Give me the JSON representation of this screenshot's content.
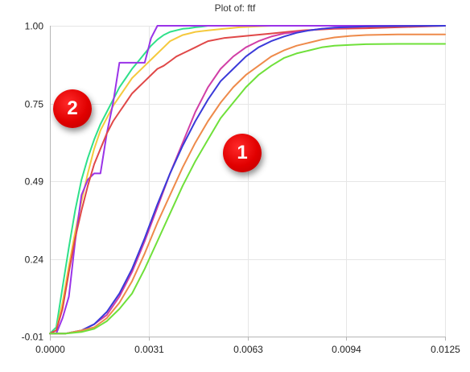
{
  "chart_data": {
    "type": "line",
    "title": "Plot of: ftf",
    "xlabel": "",
    "ylabel": "",
    "xlim": [
      0,
      0.0125
    ],
    "ylim": [
      -0.01,
      1.0
    ],
    "x_ticks": [
      "0.0000",
      "0.0031",
      "0.0063",
      "0.0094",
      "0.0125"
    ],
    "x_tick_values": [
      0,
      0.003125,
      0.00625,
      0.009375,
      0.0125
    ],
    "y_ticks": [
      "-0.01",
      "0.24",
      "0.49",
      "0.75",
      "1.00"
    ],
    "y_tick_values": [
      -0.01,
      0.2425,
      0.495,
      0.7475,
      1.0
    ],
    "grid": true,
    "legend": "none",
    "annotations": [
      {
        "label": "1",
        "x": 0.006,
        "y": 0.56
      },
      {
        "label": "2",
        "x": 0.0008,
        "y": 0.73
      }
    ],
    "series": [
      {
        "color": "#2ee08a",
        "x": [
          0,
          0.0002,
          0.0004,
          0.0006,
          0.0008,
          0.001,
          0.0012,
          0.0014,
          0.0016,
          0.0018,
          0.002,
          0.0022,
          0.0024,
          0.0026,
          0.0028,
          0.003,
          0.0032,
          0.0034,
          0.0036,
          0.0038,
          0.004,
          0.0042,
          0.0044,
          0.0046,
          0.0048,
          0.005,
          0.0125
        ],
        "y": [
          0.0,
          0.02,
          0.15,
          0.28,
          0.4,
          0.5,
          0.57,
          0.63,
          0.68,
          0.72,
          0.76,
          0.8,
          0.83,
          0.86,
          0.885,
          0.91,
          0.935,
          0.955,
          0.97,
          0.98,
          0.985,
          0.99,
          0.992,
          0.995,
          0.997,
          1.0,
          1.0
        ]
      },
      {
        "color": "#f5c93d",
        "x": [
          0,
          0.0002,
          0.0004,
          0.0006,
          0.0008,
          0.001,
          0.0012,
          0.0014,
          0.0016,
          0.0018,
          0.002,
          0.0022,
          0.0024,
          0.0026,
          0.0028,
          0.003,
          0.0032,
          0.0034,
          0.0036,
          0.0038,
          0.004,
          0.0042,
          0.0044,
          0.0046,
          0.005,
          0.0055,
          0.006,
          0.007,
          0.0125
        ],
        "y": [
          0.0,
          0.01,
          0.1,
          0.22,
          0.33,
          0.43,
          0.52,
          0.6,
          0.66,
          0.7,
          0.74,
          0.77,
          0.8,
          0.83,
          0.85,
          0.87,
          0.89,
          0.91,
          0.93,
          0.95,
          0.96,
          0.97,
          0.975,
          0.98,
          0.985,
          0.99,
          0.995,
          1.0,
          1.0
        ]
      },
      {
        "color": "#9a33e8",
        "x": [
          0,
          0.0002,
          0.0004,
          0.0006,
          0.0008,
          0.001,
          0.0012,
          0.0014,
          0.0016,
          0.0018,
          0.002,
          0.0022,
          0.0024,
          0.0026,
          0.0028,
          0.003,
          0.0032,
          0.0034,
          0.0036,
          0.0125
        ],
        "y": [
          0.0,
          0.0,
          0.05,
          0.12,
          0.3,
          0.45,
          0.5,
          0.52,
          0.52,
          0.65,
          0.75,
          0.88,
          0.88,
          0.88,
          0.88,
          0.88,
          0.96,
          1.0,
          1.0,
          1.0
        ]
      },
      {
        "color": "#e04848",
        "x": [
          0,
          0.0002,
          0.0004,
          0.0006,
          0.0008,
          0.001,
          0.0012,
          0.0014,
          0.0016,
          0.0018,
          0.002,
          0.0022,
          0.0024,
          0.0026,
          0.0028,
          0.003,
          0.0032,
          0.0034,
          0.0036,
          0.0038,
          0.004,
          0.0042,
          0.0044,
          0.0046,
          0.0048,
          0.005,
          0.0055,
          0.006,
          0.0065,
          0.007,
          0.0075,
          0.008,
          0.009,
          0.01,
          0.011,
          0.0125
        ],
        "y": [
          0.0,
          0.01,
          0.08,
          0.2,
          0.31,
          0.4,
          0.48,
          0.55,
          0.6,
          0.65,
          0.69,
          0.72,
          0.75,
          0.78,
          0.8,
          0.82,
          0.84,
          0.86,
          0.87,
          0.885,
          0.9,
          0.91,
          0.92,
          0.93,
          0.94,
          0.95,
          0.96,
          0.965,
          0.97,
          0.975,
          0.98,
          0.985,
          0.99,
          0.992,
          0.995,
          1.0
        ]
      },
      {
        "color": "#d13fa6",
        "x": [
          0,
          0.0005,
          0.001,
          0.0014,
          0.0018,
          0.0022,
          0.0026,
          0.003,
          0.0034,
          0.0038,
          0.0042,
          0.0046,
          0.005,
          0.0054,
          0.0058,
          0.0062,
          0.0066,
          0.007,
          0.0074,
          0.0078,
          0.0082,
          0.0086,
          0.009,
          0.0095,
          0.01,
          0.011,
          0.0125
        ],
        "y": [
          0.0,
          0.0,
          0.01,
          0.03,
          0.06,
          0.12,
          0.2,
          0.3,
          0.41,
          0.52,
          0.62,
          0.72,
          0.8,
          0.86,
          0.9,
          0.93,
          0.95,
          0.965,
          0.975,
          0.98,
          0.985,
          0.99,
          0.993,
          0.995,
          0.997,
          0.999,
          1.0
        ]
      },
      {
        "color": "#3a3ad9",
        "x": [
          0,
          0.0005,
          0.001,
          0.0014,
          0.0018,
          0.0022,
          0.0026,
          0.003,
          0.0034,
          0.0038,
          0.0042,
          0.0046,
          0.005,
          0.0054,
          0.0058,
          0.0062,
          0.0066,
          0.007,
          0.0074,
          0.0078,
          0.0082,
          0.0086,
          0.009,
          0.0095,
          0.01,
          0.011,
          0.0125
        ],
        "y": [
          0.0,
          0.0,
          0.01,
          0.03,
          0.07,
          0.13,
          0.21,
          0.31,
          0.42,
          0.52,
          0.61,
          0.69,
          0.76,
          0.82,
          0.86,
          0.9,
          0.93,
          0.95,
          0.965,
          0.977,
          0.985,
          0.99,
          0.994,
          0.996,
          0.998,
          0.999,
          1.0
        ]
      },
      {
        "color": "#ee8a4a",
        "x": [
          0,
          0.0005,
          0.001,
          0.0014,
          0.0018,
          0.0022,
          0.0026,
          0.003,
          0.0034,
          0.0038,
          0.0042,
          0.0046,
          0.005,
          0.0054,
          0.0058,
          0.0062,
          0.0066,
          0.007,
          0.0074,
          0.0078,
          0.0082,
          0.0086,
          0.009,
          0.0095,
          0.01,
          0.011,
          0.0125
        ],
        "y": [
          0.0,
          0.0,
          0.01,
          0.02,
          0.05,
          0.1,
          0.17,
          0.26,
          0.36,
          0.45,
          0.54,
          0.62,
          0.69,
          0.75,
          0.8,
          0.84,
          0.87,
          0.9,
          0.92,
          0.935,
          0.945,
          0.955,
          0.962,
          0.967,
          0.97,
          0.972,
          0.972
        ]
      },
      {
        "color": "#6fe03a",
        "x": [
          0,
          0.0005,
          0.001,
          0.0014,
          0.0018,
          0.0022,
          0.0026,
          0.003,
          0.0034,
          0.0038,
          0.0042,
          0.0046,
          0.005,
          0.0054,
          0.0058,
          0.0062,
          0.0066,
          0.007,
          0.0074,
          0.0078,
          0.0082,
          0.0086,
          0.009,
          0.0095,
          0.01,
          0.011,
          0.0125
        ],
        "y": [
          0.0,
          0.0,
          0.005,
          0.015,
          0.04,
          0.08,
          0.13,
          0.21,
          0.3,
          0.39,
          0.48,
          0.56,
          0.63,
          0.7,
          0.75,
          0.8,
          0.84,
          0.87,
          0.895,
          0.91,
          0.92,
          0.93,
          0.935,
          0.938,
          0.94,
          0.941,
          0.941
        ]
      }
    ]
  }
}
